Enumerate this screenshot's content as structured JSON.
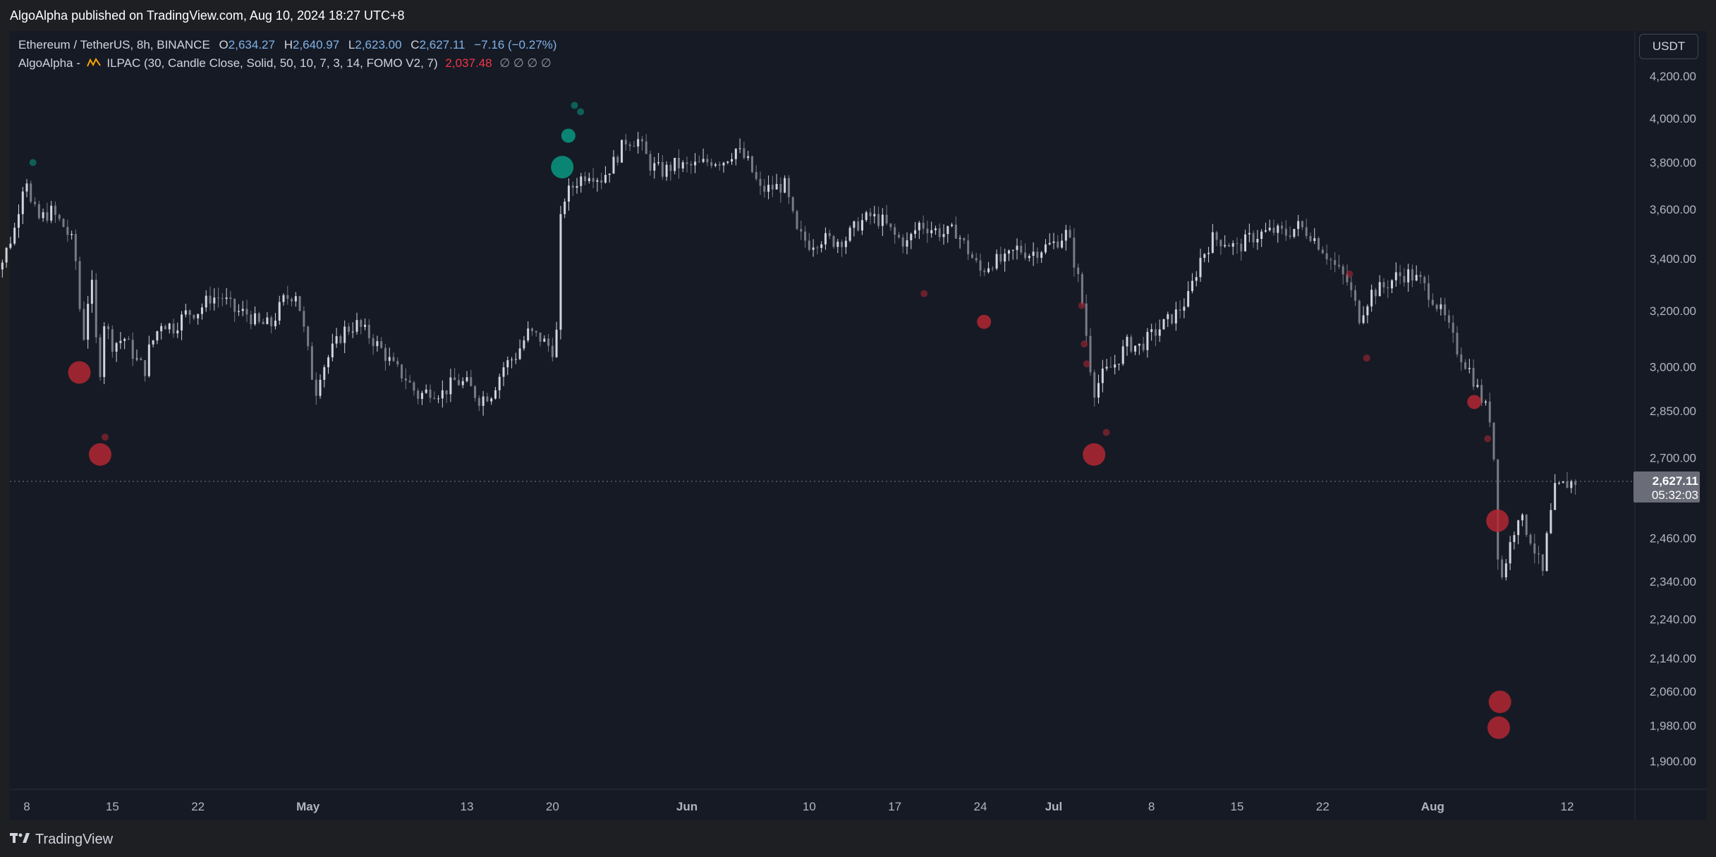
{
  "header": {
    "publisher_line": "AlgoAlpha published on TradingView.com, Aug 10, 2024 18:27 UTC+8"
  },
  "legend": {
    "symbol": "Ethereum / TetherUS, 8h, BINANCE",
    "ohlc": [
      {
        "label": "O",
        "value": "2,634.27"
      },
      {
        "label": "H",
        "value": "2,640.97"
      },
      {
        "label": "L",
        "value": "2,623.00"
      },
      {
        "label": "C",
        "value": "2,627.11"
      }
    ],
    "change": "−7.16 (−0.27%)",
    "indicator_prefix": "AlgoAlpha -",
    "indicator_icon": "indicator-wave-icon",
    "indicator": "ILPAC (30, Candle Close, Solid, 50, 10, 7, 3, 14, FOMO V2, 7)",
    "indicator_value": "2,037.48",
    "indicator_nulls": "∅  ∅  ∅  ∅"
  },
  "currency_button": "USDT",
  "price_tag": {
    "price": "2,627.11",
    "countdown": "05:32:03"
  },
  "footer": {
    "brand": "TradingView",
    "logo_icon": "tradingview-logo-icon"
  },
  "colors": {
    "bg": "#161a25",
    "candle": "#d1d4dc",
    "bull_bubble": "#089981",
    "bear_bubble": "#b22833",
    "change": "#81b2e6"
  },
  "chart_data": {
    "type": "candlestick",
    "ylim": [
      1840,
      4280
    ],
    "y_scale": "log",
    "y_ticks": [
      "1,900.00",
      "1,980.00",
      "2,060.00",
      "2,140.00",
      "2,240.00",
      "2,340.00",
      "2,460.00",
      "2,700.00",
      "2,850.00",
      "3,000.00",
      "3,200.00",
      "3,400.00",
      "3,600.00",
      "3,800.00",
      "4,000.00",
      "4,200.00"
    ],
    "x_ticks": [
      "8",
      "15",
      "22",
      "May",
      "13",
      "20",
      "Jun",
      "10",
      "17",
      "24",
      "Jul",
      "8",
      "15",
      "22",
      "Aug",
      "12"
    ],
    "x_tick_days": [
      8,
      15,
      22,
      31,
      44,
      51,
      62,
      72,
      79,
      86,
      92,
      100,
      107,
      114,
      123,
      134
    ],
    "x_unit": "days since Apr 1, 2024",
    "series": [
      {
        "values": [
          [
            5.0,
            3370
          ],
          [
            6.0,
            3390
          ],
          [
            7.0,
            3520
          ],
          [
            7.67,
            3700
          ],
          [
            8.0,
            3730
          ],
          [
            8.33,
            3620
          ],
          [
            9.0,
            3560
          ],
          [
            10.0,
            3590
          ],
          [
            11.0,
            3530
          ],
          [
            11.67,
            3470
          ],
          [
            12.0,
            3390
          ],
          [
            12.33,
            3210
          ],
          [
            12.67,
            3110
          ],
          [
            13.0,
            3240
          ],
          [
            13.33,
            3290
          ],
          [
            13.67,
            3090
          ],
          [
            14.0,
            2990
          ],
          [
            14.33,
            3160
          ],
          [
            15.0,
            3080
          ],
          [
            16.0,
            3100
          ],
          [
            17.0,
            3020
          ],
          [
            17.67,
            2990
          ],
          [
            18.0,
            3060
          ],
          [
            19.0,
            3160
          ],
          [
            20.0,
            3140
          ],
          [
            21.0,
            3190
          ],
          [
            22.0,
            3200
          ],
          [
            23.0,
            3250
          ],
          [
            24.0,
            3250
          ],
          [
            25.0,
            3200
          ],
          [
            26.0,
            3190
          ],
          [
            27.0,
            3150
          ],
          [
            28.0,
            3150
          ],
          [
            29.0,
            3240
          ],
          [
            30.0,
            3270
          ],
          [
            30.33,
            3210
          ],
          [
            31.0,
            3050
          ],
          [
            31.33,
            2970
          ],
          [
            31.67,
            2920
          ],
          [
            32.0,
            2980
          ],
          [
            33.0,
            3060
          ],
          [
            34.0,
            3130
          ],
          [
            35.0,
            3150
          ],
          [
            36.0,
            3110
          ],
          [
            37.0,
            3060
          ],
          [
            38.0,
            3000
          ],
          [
            39.0,
            2960
          ],
          [
            40.0,
            2900
          ],
          [
            41.0,
            2920
          ],
          [
            42.0,
            2910
          ],
          [
            43.0,
            2950
          ],
          [
            44.0,
            2940
          ],
          [
            45.0,
            2890
          ],
          [
            46.0,
            2910
          ],
          [
            47.0,
            3000
          ],
          [
            48.0,
            3040
          ],
          [
            49.0,
            3120
          ],
          [
            50.0,
            3100
          ],
          [
            51.0,
            3060
          ],
          [
            51.33,
            3120
          ],
          [
            51.67,
            3550
          ],
          [
            52.0,
            3650
          ],
          [
            53.0,
            3720
          ],
          [
            54.0,
            3760
          ],
          [
            55.0,
            3730
          ],
          [
            56.0,
            3800
          ],
          [
            57.0,
            3900
          ],
          [
            58.0,
            3900
          ],
          [
            59.0,
            3790
          ],
          [
            60.0,
            3760
          ],
          [
            61.0,
            3790
          ],
          [
            62.0,
            3780
          ],
          [
            63.0,
            3790
          ],
          [
            64.0,
            3810
          ],
          [
            65.0,
            3810
          ],
          [
            66.0,
            3860
          ],
          [
            67.0,
            3800
          ],
          [
            68.0,
            3680
          ],
          [
            69.0,
            3690
          ],
          [
            70.0,
            3700
          ],
          [
            71.0,
            3500
          ],
          [
            72.0,
            3460
          ],
          [
            73.0,
            3480
          ],
          [
            74.0,
            3470
          ],
          [
            75.0,
            3480
          ],
          [
            76.0,
            3540
          ],
          [
            77.0,
            3570
          ],
          [
            78.0,
            3550
          ],
          [
            79.0,
            3490
          ],
          [
            80.0,
            3460
          ],
          [
            81.0,
            3540
          ],
          [
            82.0,
            3520
          ],
          [
            83.0,
            3500
          ],
          [
            84.0,
            3510
          ],
          [
            85.0,
            3430
          ],
          [
            86.0,
            3350
          ],
          [
            87.0,
            3390
          ],
          [
            88.0,
            3390
          ],
          [
            89.0,
            3440
          ],
          [
            90.0,
            3420
          ],
          [
            91.0,
            3440
          ],
          [
            92.0,
            3460
          ],
          [
            93.0,
            3500
          ],
          [
            93.33,
            3460
          ],
          [
            94.0,
            3320
          ],
          [
            94.33,
            3230
          ],
          [
            95.0,
            3000
          ],
          [
            95.33,
            2920
          ],
          [
            96.0,
            2970
          ],
          [
            97.0,
            3010
          ],
          [
            98.0,
            3080
          ],
          [
            99.0,
            3070
          ],
          [
            100.0,
            3110
          ],
          [
            101.0,
            3150
          ],
          [
            102.0,
            3190
          ],
          [
            103.0,
            3250
          ],
          [
            104.0,
            3400
          ],
          [
            105.0,
            3480
          ],
          [
            106.0,
            3470
          ],
          [
            107.0,
            3440
          ],
          [
            108.0,
            3480
          ],
          [
            109.0,
            3500
          ],
          [
            110.0,
            3510
          ],
          [
            111.0,
            3500
          ],
          [
            112.0,
            3530
          ],
          [
            113.0,
            3500
          ],
          [
            114.0,
            3440
          ],
          [
            115.0,
            3370
          ],
          [
            116.0,
            3310
          ],
          [
            117.0,
            3180
          ],
          [
            118.0,
            3270
          ],
          [
            119.0,
            3290
          ],
          [
            120.0,
            3330
          ],
          [
            121.0,
            3340
          ],
          [
            122.0,
            3310
          ],
          [
            123.0,
            3250
          ],
          [
            124.0,
            3170
          ],
          [
            125.0,
            3060
          ],
          [
            126.0,
            2990
          ],
          [
            127.0,
            2890
          ],
          [
            127.67,
            2830
          ],
          [
            128.0,
            2700
          ],
          [
            128.33,
            2420
          ],
          [
            128.67,
            2350
          ],
          [
            129.0,
            2400
          ],
          [
            130.0,
            2530
          ],
          [
            131.0,
            2460
          ],
          [
            132.0,
            2360
          ],
          [
            132.33,
            2460
          ],
          [
            133.0,
            2600
          ],
          [
            134.0,
            2620
          ],
          [
            134.67,
            2627
          ]
        ]
      }
    ],
    "bubbles": [
      {
        "x": 8.5,
        "price": 3800,
        "size": "tiny",
        "type": "bull"
      },
      {
        "x": 12.3,
        "price": 2980,
        "size": "large",
        "type": "bear"
      },
      {
        "x": 14.0,
        "price": 2710,
        "size": "large",
        "type": "bear"
      },
      {
        "x": 14.4,
        "price": 2765,
        "size": "tiny",
        "type": "bear"
      },
      {
        "x": 51.8,
        "price": 3780,
        "size": "large",
        "type": "bull"
      },
      {
        "x": 52.3,
        "price": 3920,
        "size": "medium",
        "type": "bull"
      },
      {
        "x": 52.8,
        "price": 4060,
        "size": "tiny",
        "type": "bull"
      },
      {
        "x": 53.3,
        "price": 4030,
        "size": "tiny",
        "type": "bull"
      },
      {
        "x": 81.4,
        "price": 3265,
        "size": "tiny",
        "type": "bear"
      },
      {
        "x": 86.3,
        "price": 3160,
        "size": "medium",
        "type": "bear"
      },
      {
        "x": 94.3,
        "price": 3220,
        "size": "tiny",
        "type": "bear"
      },
      {
        "x": 94.5,
        "price": 3080,
        "size": "tiny",
        "type": "bear"
      },
      {
        "x": 94.7,
        "price": 3010,
        "size": "tiny",
        "type": "bear"
      },
      {
        "x": 95.3,
        "price": 2710,
        "size": "large",
        "type": "bear"
      },
      {
        "x": 96.3,
        "price": 2780,
        "size": "tiny",
        "type": "bear"
      },
      {
        "x": 116.2,
        "price": 3340,
        "size": "tiny",
        "type": "bear"
      },
      {
        "x": 117.6,
        "price": 3030,
        "size": "tiny",
        "type": "bear"
      },
      {
        "x": 126.4,
        "price": 2880,
        "size": "medium",
        "type": "bear"
      },
      {
        "x": 127.5,
        "price": 2760,
        "size": "tiny",
        "type": "bear"
      },
      {
        "x": 128.3,
        "price": 2510,
        "size": "large",
        "type": "bear"
      },
      {
        "x": 128.5,
        "price": 2035,
        "size": "large",
        "type": "bear"
      },
      {
        "x": 128.4,
        "price": 1975,
        "size": "large",
        "type": "bear"
      }
    ]
  }
}
